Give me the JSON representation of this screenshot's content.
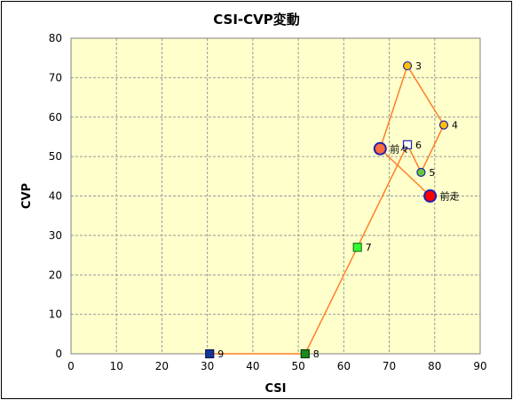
{
  "chart_data": {
    "type": "line",
    "title": "CSI-CVP変動",
    "xlabel": "CSI",
    "ylabel": "CVP",
    "xlim": [
      0,
      90
    ],
    "ylim": [
      0,
      80
    ],
    "x_ticks": [
      "0",
      "10",
      "20",
      "30",
      "40",
      "50",
      "60",
      "70",
      "80",
      "90"
    ],
    "y_ticks": [
      "0",
      "10",
      "20",
      "30",
      "40",
      "50",
      "60",
      "70",
      "80"
    ],
    "grid": true,
    "colors": {
      "plot_background": "#FFFFCC",
      "grid": "#999999",
      "line": "#FF7F27",
      "frame_border": "#000000"
    },
    "points": [
      {
        "label": "前走",
        "x": 79,
        "y": 40,
        "shape": "circle",
        "size": "large",
        "fill": "#FF0000",
        "stroke": "#2222AA"
      },
      {
        "label": "前々",
        "x": 68,
        "y": 52,
        "shape": "circle",
        "size": "large",
        "fill": "#FF6A3D",
        "stroke": "#2222AA"
      },
      {
        "label": "3",
        "x": 74,
        "y": 73,
        "shape": "circle",
        "size": "small",
        "fill": "#FFC000",
        "stroke": "#2222AA"
      },
      {
        "label": "4",
        "x": 82,
        "y": 58,
        "shape": "circle",
        "size": "small",
        "fill": "#FFC000",
        "stroke": "#2222AA"
      },
      {
        "label": "5",
        "x": 77,
        "y": 46,
        "shape": "circle",
        "size": "small",
        "fill": "#66CC33",
        "stroke": "#2222AA"
      },
      {
        "label": "6",
        "x": 74,
        "y": 53,
        "shape": "square",
        "size": "small",
        "fill": "#FFFFFF",
        "stroke": "#2222AA"
      },
      {
        "label": "7",
        "x": 63,
        "y": 27,
        "shape": "square",
        "size": "small",
        "fill": "#33FF33",
        "stroke": "#1A7A1A"
      },
      {
        "label": "8",
        "x": 51.5,
        "y": 0,
        "shape": "square",
        "size": "small",
        "fill": "#1A8A1A",
        "stroke": "#0A3A0A"
      },
      {
        "label": "9",
        "x": 30.5,
        "y": 0,
        "shape": "square",
        "size": "small",
        "fill": "#1A3399",
        "stroke": "#0A1A55"
      }
    ]
  }
}
